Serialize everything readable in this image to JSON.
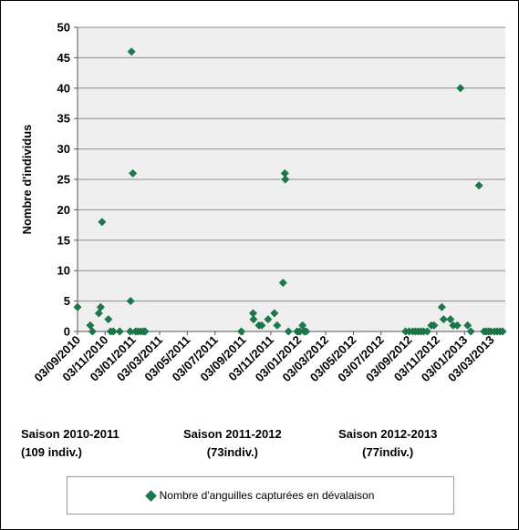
{
  "chart_data": {
    "type": "scatter",
    "ylabel": "Nombre d'individus",
    "ylim": [
      0,
      50
    ],
    "yticks": [
      0,
      5,
      10,
      15,
      20,
      25,
      30,
      35,
      40,
      45,
      50
    ],
    "xlim": [
      "2010-09-03",
      "2013-04-03"
    ],
    "xticks": [
      "03/09/2010",
      "03/11/2010",
      "03/01/2011",
      "03/03/2011",
      "03/05/2011",
      "03/07/2011",
      "03/09/2011",
      "03/11/2011",
      "03/01/2012",
      "03/03/2012",
      "03/05/2012",
      "03/07/2012",
      "03/09/2012",
      "03/11/2012",
      "03/01/2013",
      "03/03/2013"
    ],
    "grid": true,
    "legend_position": "bottom",
    "marker_color": "#1a7a4a",
    "plot_background": "#efefef",
    "series": [
      {
        "name": "Nombre d'anguilles capturées en dévalaison",
        "points": [
          [
            "2010-09-03",
            4
          ],
          [
            "2010-10-01",
            1
          ],
          [
            "2010-10-06",
            0
          ],
          [
            "2010-10-20",
            3
          ],
          [
            "2010-10-24",
            4
          ],
          [
            "2010-10-27",
            18
          ],
          [
            "2010-11-10",
            2
          ],
          [
            "2010-11-15",
            0
          ],
          [
            "2010-11-21",
            0
          ],
          [
            "2010-12-05",
            0
          ],
          [
            "2010-12-28",
            0
          ],
          [
            "2010-12-29",
            5
          ],
          [
            "2010-12-31",
            46
          ],
          [
            "2011-01-03",
            26
          ],
          [
            "2011-01-09",
            0
          ],
          [
            "2011-01-14",
            0
          ],
          [
            "2011-01-20",
            0
          ],
          [
            "2011-01-26",
            0
          ],
          [
            "2011-01-30",
            0
          ],
          [
            "2011-08-30",
            0
          ],
          [
            "2011-09-25",
            3
          ],
          [
            "2011-09-26",
            2
          ],
          [
            "2011-10-08",
            1
          ],
          [
            "2011-10-14",
            1
          ],
          [
            "2011-10-28",
            2
          ],
          [
            "2011-11-11",
            3
          ],
          [
            "2011-11-17",
            1
          ],
          [
            "2011-11-30",
            8
          ],
          [
            "2011-12-04",
            26
          ],
          [
            "2011-12-05",
            25
          ],
          [
            "2011-12-12",
            0
          ],
          [
            "2011-12-31",
            0
          ],
          [
            "2012-01-06",
            0
          ],
          [
            "2012-01-12",
            1
          ],
          [
            "2012-01-16",
            0
          ],
          [
            "2012-01-20",
            0
          ],
          [
            "2012-08-26",
            0
          ],
          [
            "2012-09-03",
            0
          ],
          [
            "2012-09-11",
            0
          ],
          [
            "2012-09-17",
            0
          ],
          [
            "2012-09-23",
            0
          ],
          [
            "2012-09-29",
            0
          ],
          [
            "2012-10-05",
            0
          ],
          [
            "2012-10-13",
            0
          ],
          [
            "2012-10-22",
            1
          ],
          [
            "2012-10-28",
            1
          ],
          [
            "2012-11-14",
            4
          ],
          [
            "2012-11-18",
            2
          ],
          [
            "2012-12-03",
            2
          ],
          [
            "2012-12-09",
            1
          ],
          [
            "2012-12-18",
            1
          ],
          [
            "2012-12-25",
            40
          ],
          [
            "2013-01-10",
            1
          ],
          [
            "2013-01-17",
            0
          ],
          [
            "2013-02-04",
            24
          ],
          [
            "2013-02-15",
            0
          ],
          [
            "2013-02-20",
            0
          ],
          [
            "2013-02-25",
            0
          ],
          [
            "2013-03-02",
            0
          ],
          [
            "2013-03-10",
            0
          ],
          [
            "2013-03-16",
            0
          ],
          [
            "2013-03-22",
            0
          ],
          [
            "2013-03-28",
            0
          ]
        ]
      }
    ],
    "annotations": [
      {
        "line1": "Saison  2010-2011",
        "line2": "(109 indiv.)"
      },
      {
        "line1": "Saison 2011-2012",
        "line2": "(73indiv.)"
      },
      {
        "line1": "Saison  2012-2013",
        "line2": "(77indiv.)"
      }
    ]
  }
}
